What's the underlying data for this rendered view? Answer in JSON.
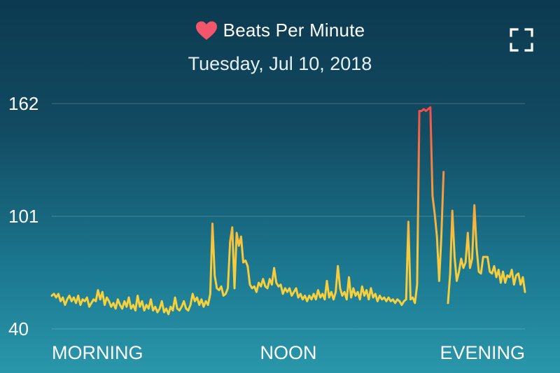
{
  "header": {
    "title": "Beats Per Minute",
    "subtitle": "Tuesday, Jul 10, 2018",
    "title_icon": "heart-icon",
    "expand_icon": "fullscreen-icon",
    "heart_color": "#f2566a"
  },
  "chart_data": {
    "type": "line",
    "ylabel": "",
    "xlabel": "",
    "ylim": [
      40,
      162
    ],
    "yticks": [
      162,
      101,
      40
    ],
    "xlabels": [
      "MORNING",
      "NOON",
      "EVENING"
    ],
    "grid": true,
    "colors": {
      "low": "#f7d43c",
      "high": "#f2484b"
    },
    "series": [
      {
        "segments": [
          [
            [
              0,
              58
            ],
            [
              2,
              59
            ],
            [
              4,
              57
            ],
            [
              6,
              59
            ],
            [
              8,
              55
            ],
            [
              10,
              57
            ],
            [
              12,
              53
            ],
            [
              14,
              56
            ],
            [
              16,
              58
            ],
            [
              18,
              55
            ],
            [
              20,
              57
            ],
            [
              22,
              54
            ],
            [
              24,
              58
            ],
            [
              26,
              53
            ],
            [
              28,
              56
            ],
            [
              30,
              55
            ],
            [
              32,
              57
            ],
            [
              34,
              52
            ],
            [
              36,
              54
            ],
            [
              38,
              56
            ],
            [
              40,
              55
            ],
            [
              42,
              61
            ],
            [
              44,
              56
            ],
            [
              46,
              60
            ],
            [
              48,
              53
            ],
            [
              50,
              57
            ],
            [
              52,
              55
            ],
            [
              54,
              52
            ],
            [
              56,
              54
            ],
            [
              58,
              51
            ],
            [
              60,
              56
            ],
            [
              62,
              53
            ],
            [
              64,
              51
            ],
            [
              66,
              55
            ],
            [
              68,
              52
            ],
            [
              70,
              57
            ],
            [
              72,
              51
            ],
            [
              74,
              53
            ],
            [
              76,
              50
            ],
            [
              78,
              58
            ],
            [
              80,
              52
            ],
            [
              82,
              55
            ],
            [
              84,
              50
            ],
            [
              86,
              53
            ],
            [
              88,
              51
            ],
            [
              90,
              56
            ],
            [
              92,
              50
            ],
            [
              94,
              52
            ],
            [
              96,
              49
            ],
            [
              98,
              51
            ],
            [
              100,
              55
            ],
            [
              102,
              49
            ],
            [
              104,
              51
            ],
            [
              106,
              48
            ],
            [
              108,
              52
            ],
            [
              110,
              50
            ],
            [
              112,
              57
            ],
            [
              114,
              51
            ],
            [
              116,
              50
            ],
            [
              118,
              52
            ],
            [
              120,
              55
            ],
            [
              122,
              51
            ],
            [
              124,
              50
            ],
            [
              126,
              53
            ],
            [
              128,
              59
            ],
            [
              130,
              55
            ],
            [
              132,
              57
            ],
            [
              134,
              53
            ],
            [
              136,
              56
            ],
            [
              138,
              52
            ],
            [
              140,
              55
            ],
            [
              142,
              53
            ],
            [
              144,
              59
            ],
            [
              146,
              97
            ],
            [
              148,
              69
            ],
            [
              150,
              62
            ],
            [
              152,
              61
            ],
            [
              154,
              63
            ],
            [
              156,
              58
            ],
            [
              158,
              59
            ],
            [
              160,
              62
            ],
            [
              162,
              87
            ],
            [
              164,
              95
            ],
            [
              166,
              62
            ],
            [
              168,
              92
            ],
            [
              170,
              85
            ],
            [
              172,
              90
            ],
            [
              174,
              76
            ],
            [
              176,
              77
            ],
            [
              178,
              74
            ],
            [
              180,
              64
            ],
            [
              182,
              62
            ],
            [
              184,
              63
            ],
            [
              186,
              60
            ],
            [
              188,
              65
            ],
            [
              190,
              63
            ],
            [
              192,
              67
            ],
            [
              194,
              63
            ],
            [
              196,
              62
            ],
            [
              198,
              67
            ],
            [
              200,
              64
            ],
            [
              202,
              73
            ],
            [
              204,
              65
            ],
            [
              206,
              63
            ],
            [
              208,
              64
            ],
            [
              210,
              59
            ],
            [
              212,
              62
            ],
            [
              214,
              60
            ],
            [
              216,
              62
            ],
            [
              218,
              58
            ],
            [
              220,
              60
            ],
            [
              222,
              62
            ],
            [
              224,
              57
            ],
            [
              226,
              59
            ],
            [
              228,
              56
            ],
            [
              230,
              58
            ],
            [
              232,
              55
            ],
            [
              234,
              58
            ],
            [
              236,
              56
            ],
            [
              238,
              59
            ],
            [
              240,
              56
            ],
            [
              242,
              61
            ],
            [
              244,
              57
            ],
            [
              246,
              59
            ],
            [
              248,
              56
            ],
            [
              250,
              66
            ],
            [
              252,
              57
            ],
            [
              254,
              60
            ],
            [
              256,
              56
            ],
            [
              258,
              60
            ],
            [
              260,
              74
            ],
            [
              262,
              62
            ],
            [
              264,
              58
            ],
            [
              266,
              60
            ],
            [
              268,
              56
            ],
            [
              270,
              68
            ],
            [
              272,
              57
            ],
            [
              274,
              62
            ],
            [
              276,
              58
            ],
            [
              278,
              60
            ],
            [
              280,
              56
            ],
            [
              282,
              63
            ],
            [
              284,
              58
            ],
            [
              286,
              61
            ],
            [
              288,
              56
            ],
            [
              290,
              62
            ],
            [
              292,
              57
            ],
            [
              294,
              59
            ],
            [
              296,
              55
            ],
            [
              298,
              58
            ],
            [
              300,
              56
            ],
            [
              302,
              57
            ],
            [
              304,
              55
            ],
            [
              306,
              57
            ],
            [
              308,
              55
            ],
            [
              310,
              56
            ],
            [
              312,
              54
            ],
            [
              314,
              56
            ],
            [
              316,
              55
            ],
            [
              318,
              53
            ],
            [
              320,
              55
            ],
            [
              322,
              56
            ],
            [
              324,
              98
            ],
            [
              326,
              56
            ],
            [
              328,
              57
            ],
            [
              330,
              54
            ],
            [
              332,
              64
            ],
            [
              334,
              158
            ],
            [
              336,
              158
            ],
            [
              338,
              159
            ],
            [
              340,
              158
            ],
            [
              342,
              159
            ],
            [
              344,
              160
            ],
            [
              346,
              112
            ],
            [
              348,
              102
            ],
            [
              350,
              90
            ],
            [
              352,
              66
            ],
            [
              354,
              90
            ],
            [
              356,
              125
            ]
          ],
          [
            [
              360,
              54
            ],
            [
              362,
              70
            ],
            [
              364,
              104
            ],
            [
              366,
              79
            ],
            [
              368,
              66
            ],
            [
              370,
              71
            ],
            [
              372,
              78
            ],
            [
              374,
              73
            ],
            [
              376,
              76
            ],
            [
              378,
              92
            ],
            [
              380,
              73
            ],
            [
              382,
              78
            ],
            [
              384,
              107
            ],
            [
              386,
              84
            ],
            [
              388,
              71
            ],
            [
              390,
              70
            ],
            [
              392,
              79
            ],
            [
              394,
              79
            ],
            [
              396,
              79
            ],
            [
              398,
              71
            ],
            [
              400,
              70
            ],
            [
              402,
              74
            ],
            [
              404,
              68
            ],
            [
              406,
              72
            ],
            [
              408,
              65
            ],
            [
              410,
              71
            ],
            [
              412,
              65
            ],
            [
              414,
              69
            ],
            [
              416,
              68
            ],
            [
              418,
              72
            ],
            [
              420,
              64
            ],
            [
              422,
              69
            ],
            [
              424,
              70
            ],
            [
              426,
              64
            ],
            [
              428,
              68
            ],
            [
              430,
              60
            ]
          ]
        ]
      }
    ]
  }
}
